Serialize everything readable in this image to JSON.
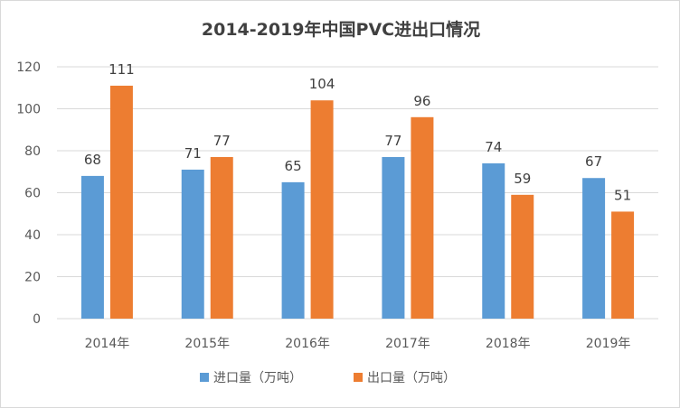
{
  "chart_data": {
    "type": "bar",
    "title": "2014-2019年中国PVC进出口情况",
    "categories": [
      "2014年",
      "2015年",
      "2016年",
      "2017年",
      "2018年",
      "2019年"
    ],
    "series": [
      {
        "name": "进口量（万吨）",
        "color": "#5B9BD5",
        "values": [
          68,
          71,
          65,
          77,
          74,
          67
        ]
      },
      {
        "name": "出口量（万吨）",
        "color": "#ED7D31",
        "values": [
          111,
          77,
          104,
          96,
          59,
          51
        ]
      }
    ],
    "ylim": [
      0,
      120
    ],
    "yticks": [
      0,
      20,
      40,
      60,
      80,
      100,
      120
    ],
    "grid": true,
    "data_labels": true,
    "legend": "bottom"
  }
}
